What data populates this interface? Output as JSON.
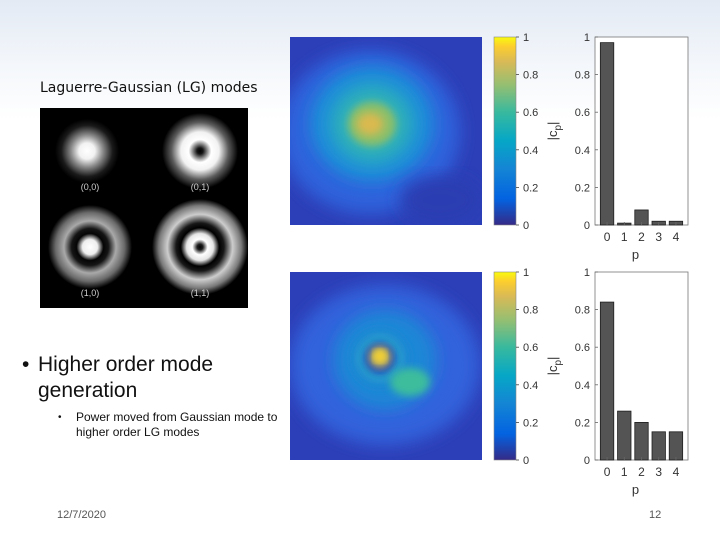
{
  "slide": {
    "lg_heading": "Laguerre-Gaussian (LG) modes",
    "lg_mode_labels": [
      "(0,0)",
      "(0,1)",
      "(1,0)",
      "(1,1)"
    ],
    "bullet_main": "Higher order mode generation",
    "bullet_sub": "Power moved from Gaussian mode to higher order LG modes",
    "footer_date": "12/7/2020",
    "page_number": "12"
  },
  "colorbar": {
    "ticks": [
      "0",
      "0.2",
      "0.4",
      "0.6",
      "0.8",
      "1"
    ]
  },
  "chart_data": [
    {
      "type": "bar",
      "categories": [
        "0",
        "1",
        "2",
        "3",
        "4"
      ],
      "values": [
        0.97,
        0.01,
        0.08,
        0.02,
        0.02
      ],
      "xlabel": "p",
      "ylabel": "|c_p|",
      "ylim": [
        0,
        1
      ],
      "yticks": [
        "0",
        "0.2",
        "0.4",
        "0.6",
        "0.8",
        "1"
      ],
      "grid": false
    },
    {
      "type": "bar",
      "categories": [
        "0",
        "1",
        "2",
        "3",
        "4"
      ],
      "values": [
        0.84,
        0.26,
        0.2,
        0.15,
        0.15
      ],
      "xlabel": "p",
      "ylabel": "|c_p|",
      "ylim": [
        0,
        1
      ],
      "yticks": [
        "0",
        "0.2",
        "0.4",
        "0.6",
        "0.8",
        "1"
      ],
      "grid": false
    }
  ],
  "colors": {
    "bar_fill": "#545454",
    "bar_stroke": "#1e1e1e",
    "heat_low": "#3e26a8",
    "heat_mid": "#13beb7",
    "heat_high": "#f9fb0e"
  }
}
